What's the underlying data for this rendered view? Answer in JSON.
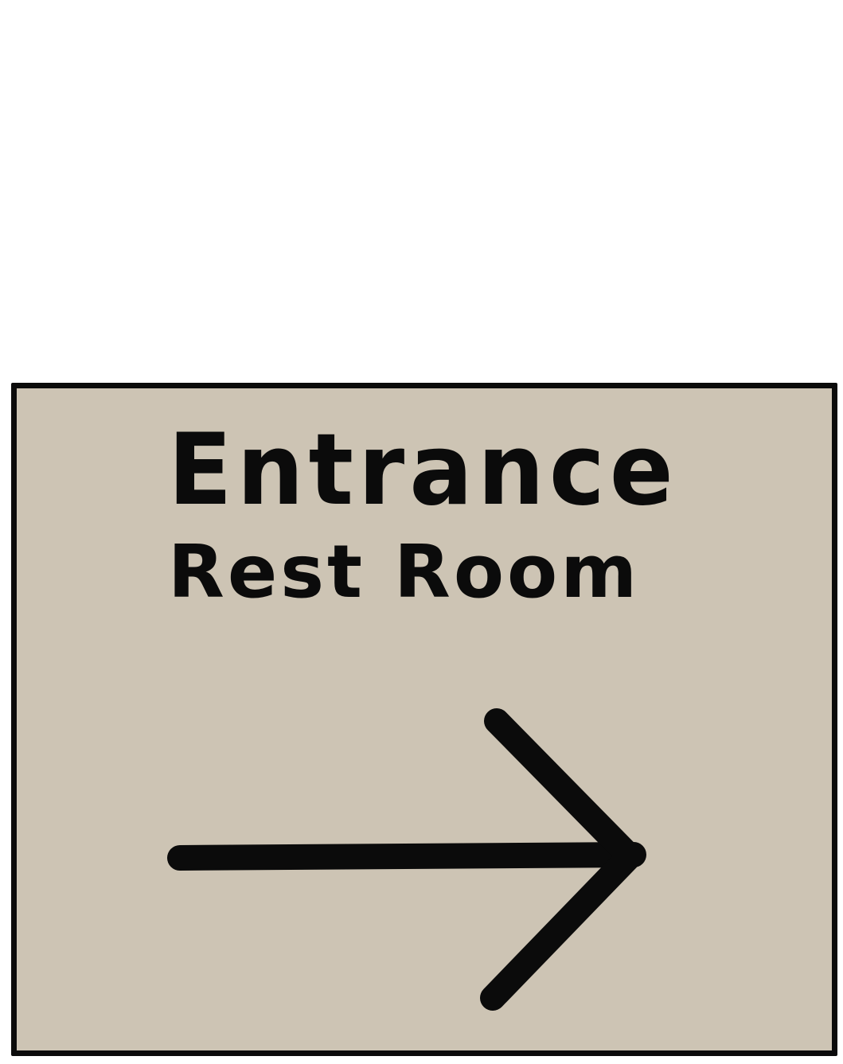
{
  "sign": {
    "line1": "Entrance",
    "line2": "Rest Room",
    "arrow_icon": "arrow-right-icon",
    "background_color": "#cdc4b4",
    "border_color": "#0b0b0b",
    "ink_color": "#0b0b0b"
  }
}
